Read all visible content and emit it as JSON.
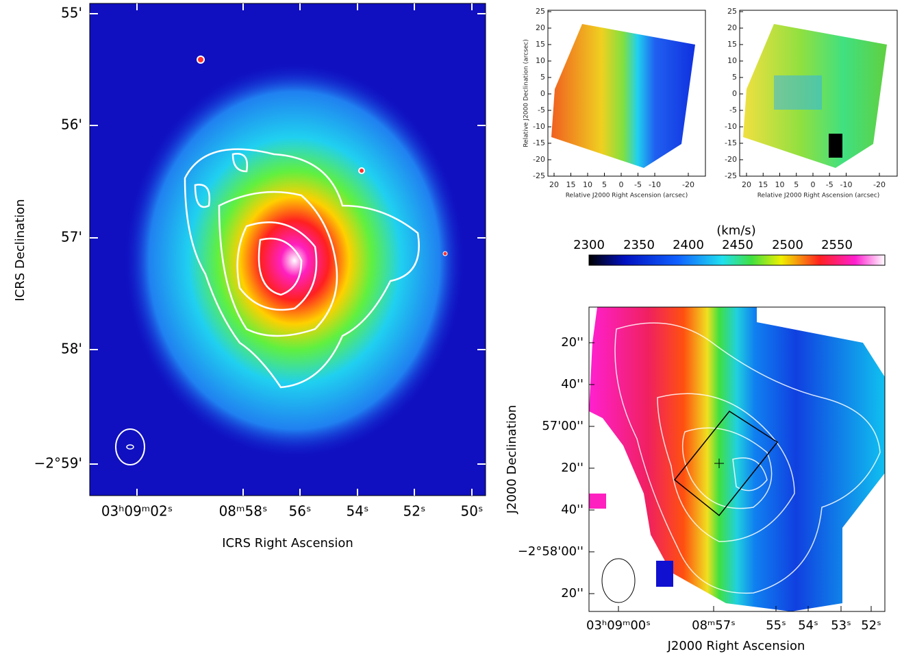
{
  "left_panel": {
    "x_label": "ICRS Right Ascension",
    "y_label": "ICRS Declination",
    "x_ticks": [
      "03ʰ09ᵐ02ˢ",
      "08ᵐ58ˢ",
      "56ˢ",
      "54ˢ",
      "52ˢ",
      "50ˢ"
    ],
    "y_ticks": [
      "55'",
      "56'",
      "57'",
      "58'",
      "−2°59'"
    ]
  },
  "top_panels": [
    {
      "y_label": "Relative J2000 Declination (arcsec)",
      "x_label": "Relative J2000 Right Ascension (arcsec)",
      "x_ticks": [
        20,
        15,
        10,
        5,
        0,
        -5,
        -10,
        -20
      ],
      "y_ticks": [
        25,
        20,
        15,
        10,
        5,
        0,
        -5,
        -10,
        -15,
        -20,
        -25
      ]
    },
    {
      "x_label": "Relative J2000 Right Ascension (arcsec)",
      "x_ticks": [
        20,
        15,
        10,
        5,
        0,
        -5,
        -10,
        -20
      ],
      "y_ticks": [
        25,
        20,
        15,
        10,
        5,
        0,
        -5,
        -10,
        -15,
        -20,
        -25
      ]
    }
  ],
  "colorbar": {
    "unit": "(km/s)",
    "ticks": [
      2300,
      2350,
      2400,
      2450,
      2500,
      2550
    ]
  },
  "bottom_panel": {
    "x_label": "J2000 Right Ascension",
    "y_label": "J2000 Declination",
    "x_ticks": [
      "03ʰ09ᵐ00ˢ",
      "08ᵐ57ˢ",
      "55ˢ",
      "54ˢ",
      "53ˢ",
      "52ˢ"
    ],
    "y_ticks": [
      "20''",
      "40''",
      "57'00''",
      "20''",
      "40''",
      "−2°58'00''",
      "20''"
    ]
  }
}
